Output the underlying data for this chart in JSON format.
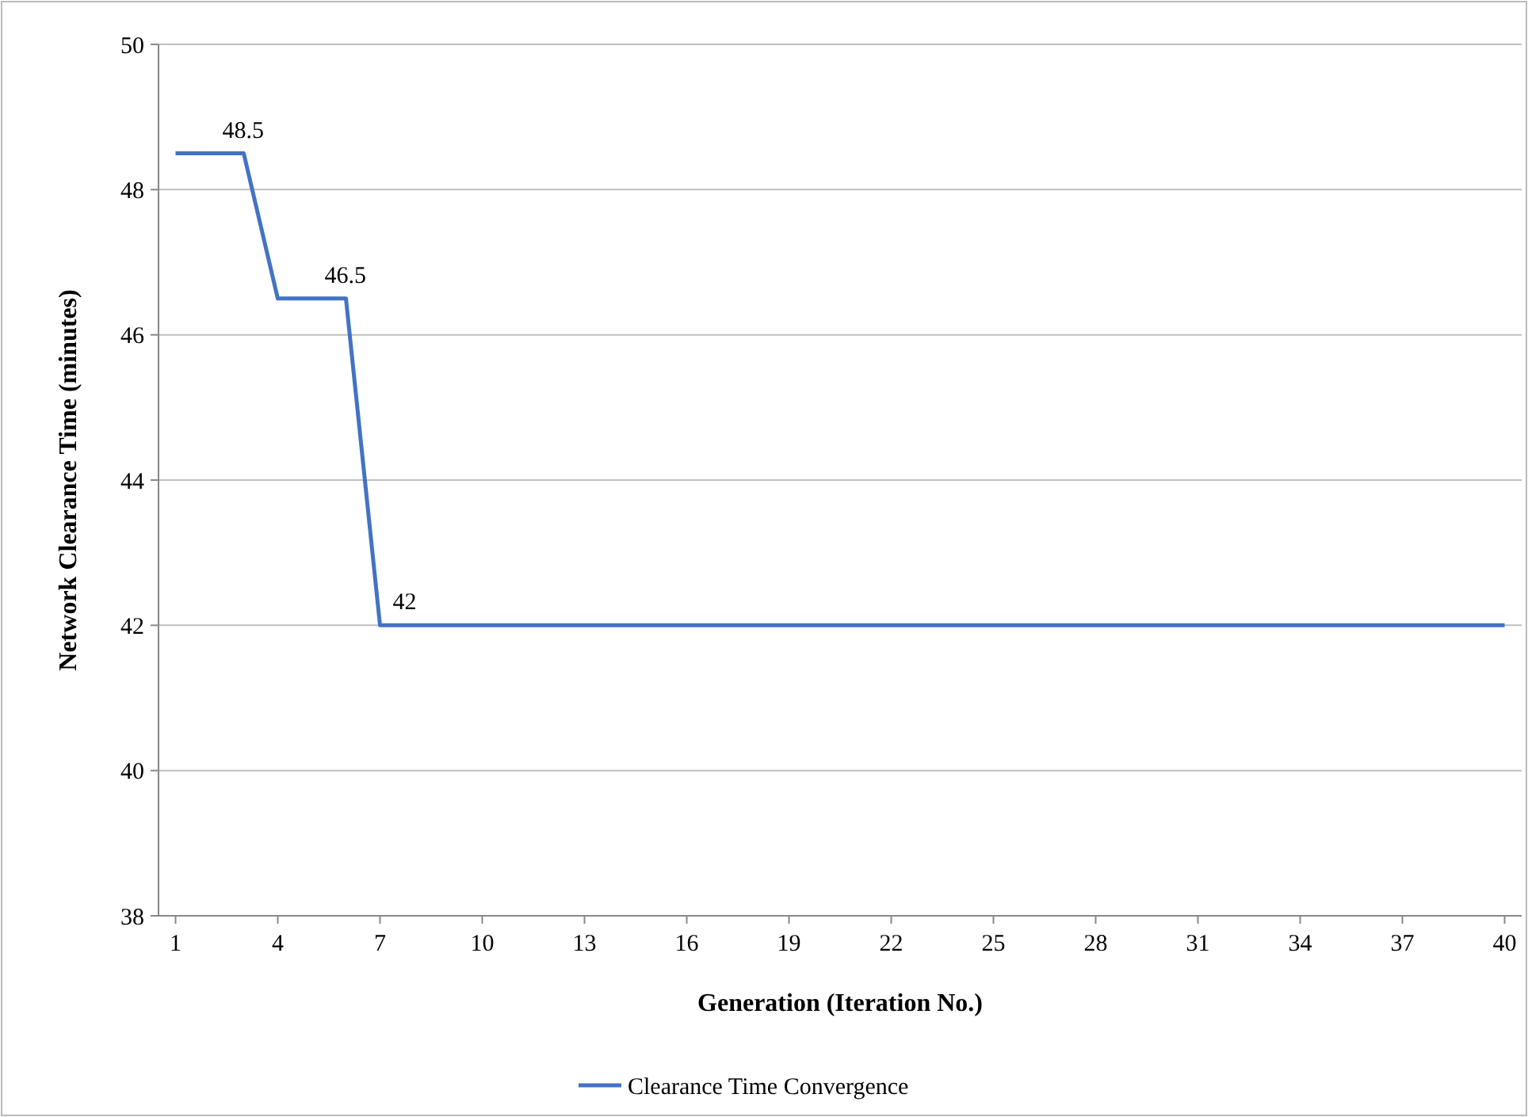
{
  "chart_data": {
    "type": "line",
    "xlabel": "Generation (Iteration No.)",
    "ylabel": "Network Clearance Time (minutes)",
    "categories": [
      "1",
      null,
      null,
      "4",
      null,
      null,
      "7",
      null,
      null,
      "10",
      null,
      null,
      "13",
      null,
      null,
      "16",
      null,
      null,
      "19",
      null,
      null,
      "22",
      null,
      null,
      "25",
      null,
      null,
      "28",
      null,
      null,
      "31",
      null,
      null,
      "34",
      null,
      null,
      "37",
      null,
      null,
      "40"
    ],
    "series": [
      {
        "name": "Clearance Time Convergence",
        "color": "#4472c4",
        "values": [
          48.5,
          48.5,
          48.5,
          46.5,
          46.5,
          46.5,
          42,
          42,
          42,
          42,
          42,
          42,
          42,
          42,
          42,
          42,
          42,
          42,
          42,
          42,
          42,
          42,
          42,
          42,
          42,
          42,
          42,
          42,
          42,
          42,
          42,
          42,
          42,
          42,
          42,
          42,
          42,
          42,
          42,
          42
        ],
        "value_labels": [
          null,
          "48.5",
          null,
          null,
          "46.5",
          null,
          "42",
          null,
          null,
          null,
          null,
          null,
          null,
          null,
          null,
          null,
          null,
          null,
          null,
          null,
          null,
          null,
          null,
          null,
          null,
          null,
          null,
          null,
          null,
          null,
          null,
          null,
          null,
          null,
          null,
          null,
          null,
          null,
          null,
          null
        ]
      }
    ],
    "ylim": [
      38,
      50
    ],
    "yticks": [
      38,
      40,
      42,
      44,
      46,
      48,
      50
    ],
    "grid": "y",
    "legend": "bottom",
    "marker": "none",
    "line_style": "solid"
  }
}
